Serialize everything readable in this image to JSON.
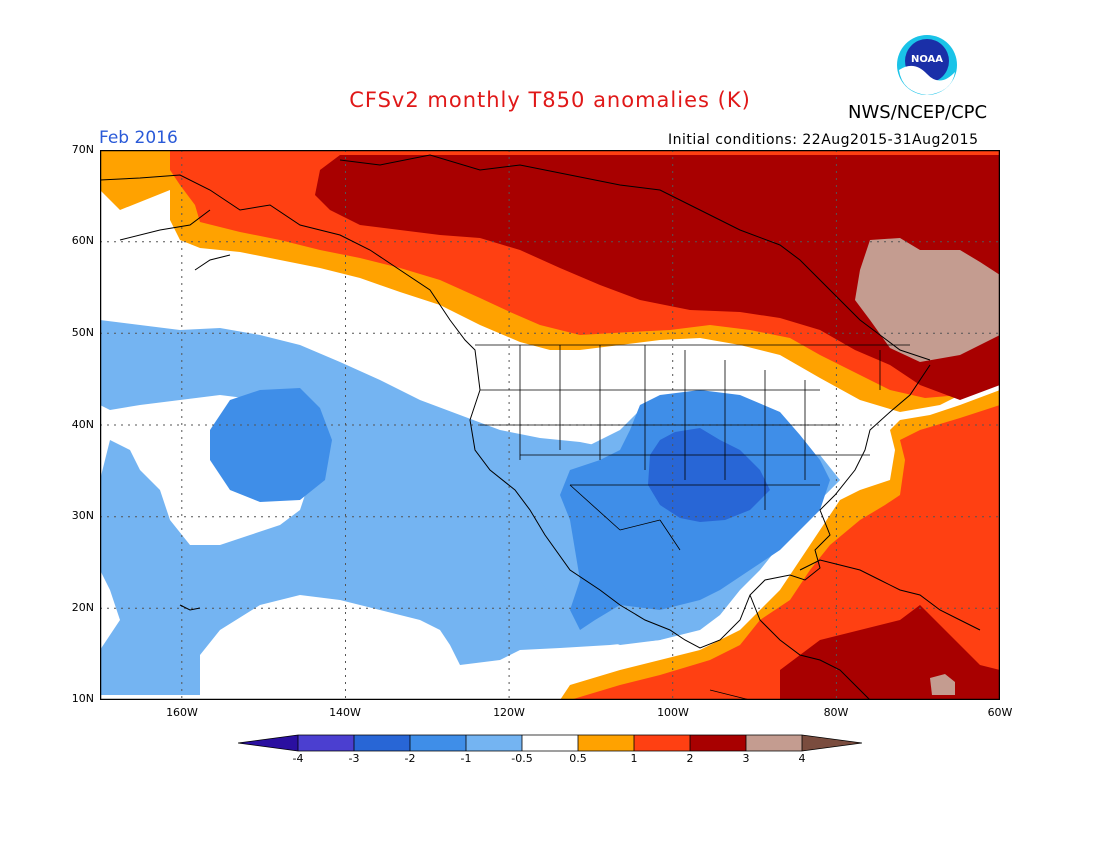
{
  "header": {
    "title": "CFSv2 monthly T850 anomalies (K)",
    "agency": "NWS/NCEP/CPC",
    "valid_month": "Feb 2016",
    "initial_conditions": "Initial conditions: 22Aug2015-31Aug2015",
    "logo_text": "NOAA"
  },
  "axes": {
    "lat_labels": [
      "70N",
      "60N",
      "50N",
      "40N",
      "30N",
      "20N",
      "10N"
    ],
    "lon_labels": [
      "160W",
      "140W",
      "120W",
      "100W",
      "80W",
      "60W"
    ]
  },
  "colorbar": {
    "labels": [
      "-4",
      "-3",
      "-2",
      "-1",
      "-0.5",
      "0.5",
      "1",
      "2",
      "3",
      "4"
    ],
    "colors": [
      "#2a0fa0",
      "#4b3fd0",
      "#2866d6",
      "#3f8ee8",
      "#74b4f2",
      "#ffffff",
      "#ffa200",
      "#ff4012",
      "#a80000",
      "#c49c90",
      "#7a4c3e"
    ]
  },
  "palette": {
    "neg2": "#2866d6",
    "neg1": "#3f8ee8",
    "neg05": "#74b4f2",
    "pos05": "#ffa200",
    "pos1": "#ff4012",
    "pos2": "#a80000",
    "pos3": "#c49c90",
    "title_color": "#e01818",
    "month_color": "#2a5ad8"
  }
}
